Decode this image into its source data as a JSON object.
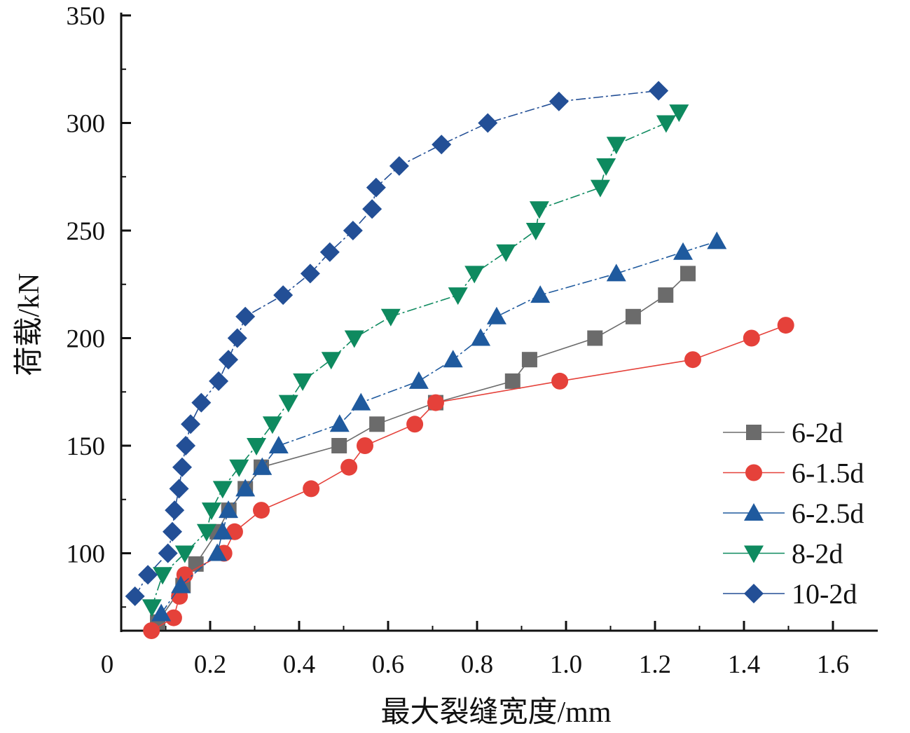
{
  "chart_data": {
    "type": "line",
    "title": "",
    "xlabel": "最大裂缝宽度/mm",
    "ylabel": "荷载/kN",
    "xlim": [
      0,
      1.7
    ],
    "ylim": [
      64,
      350
    ],
    "xticks": [
      0,
      0.2,
      0.4,
      0.6,
      0.8,
      1.0,
      1.2,
      1.4,
      1.6
    ],
    "xtick_labels": [
      "0",
      "0.2",
      "0.4",
      "0.6",
      "0.8",
      "1.0",
      "1.2",
      "1.4",
      "1.6"
    ],
    "yticks": [
      100,
      150,
      200,
      250,
      300,
      350
    ],
    "ytick_labels": [
      "100",
      "150",
      "200",
      "250",
      "300",
      "350"
    ],
    "grid": false,
    "legend_position": "right",
    "series": [
      {
        "name": "6-2d",
        "color": "#6b6b6b",
        "marker": "square",
        "dash": "solid",
        "x": [
          0.082,
          0.139,
          0.168,
          0.216,
          0.242,
          0.279,
          0.315,
          0.49,
          0.575,
          0.707,
          0.88,
          0.918,
          1.065,
          1.151,
          1.224,
          1.274
        ],
        "y": [
          68,
          85,
          95,
          110,
          120,
          130,
          140,
          150,
          160,
          170,
          180,
          190,
          200,
          210,
          220,
          230
        ]
      },
      {
        "name": "6-1.5d",
        "color": "#e5413a",
        "marker": "circle",
        "dash": "solid",
        "x": [
          0.068,
          0.118,
          0.131,
          0.143,
          0.231,
          0.255,
          0.315,
          0.427,
          0.512,
          0.548,
          0.66,
          0.707,
          0.986,
          1.285,
          1.417,
          1.494
        ],
        "y": [
          64,
          70,
          80,
          90,
          100,
          110,
          120,
          130,
          140,
          150,
          160,
          170,
          180,
          190,
          200,
          206
        ]
      },
      {
        "name": "6-2.5d",
        "color": "#1f5a9e",
        "marker": "triangle-up",
        "dash": "dashdot",
        "x": [
          0.09,
          0.134,
          0.216,
          0.228,
          0.241,
          0.279,
          0.317,
          0.354,
          0.491,
          0.539,
          0.669,
          0.746,
          0.808,
          0.844,
          0.942,
          1.113,
          1.263,
          1.339
        ],
        "y": [
          72,
          85,
          100,
          110,
          120,
          130,
          140,
          150,
          160,
          170,
          180,
          190,
          200,
          210,
          220,
          230,
          240,
          245
        ]
      },
      {
        "name": "8-2d",
        "color": "#0e8a5f",
        "marker": "triangle-down",
        "dash": "dashdot",
        "x": [
          0.069,
          0.093,
          0.143,
          0.192,
          0.203,
          0.228,
          0.265,
          0.304,
          0.34,
          0.376,
          0.408,
          0.472,
          0.524,
          0.606,
          0.757,
          0.794,
          0.865,
          0.932,
          0.94,
          1.077,
          1.09,
          1.113,
          1.225,
          1.254
        ],
        "y": [
          75,
          90,
          100,
          110,
          120,
          130,
          140,
          150,
          160,
          170,
          180,
          190,
          200,
          210,
          220,
          230,
          240,
          250,
          260,
          270,
          280,
          290,
          300,
          305
        ]
      },
      {
        "name": "10-2d",
        "color": "#234f96",
        "marker": "diamond",
        "dash": "dashdot",
        "x": [
          0.031,
          0.06,
          0.105,
          0.115,
          0.12,
          0.13,
          0.137,
          0.145,
          0.156,
          0.18,
          0.219,
          0.241,
          0.261,
          0.279,
          0.364,
          0.425,
          0.469,
          0.521,
          0.564,
          0.573,
          0.625,
          0.72,
          0.824,
          0.984,
          1.208
        ],
        "y": [
          80,
          90,
          100,
          110,
          120,
          130,
          140,
          150,
          160,
          170,
          180,
          190,
          200,
          210,
          220,
          230,
          240,
          250,
          260,
          270,
          280,
          290,
          300,
          310,
          315
        ]
      }
    ]
  }
}
